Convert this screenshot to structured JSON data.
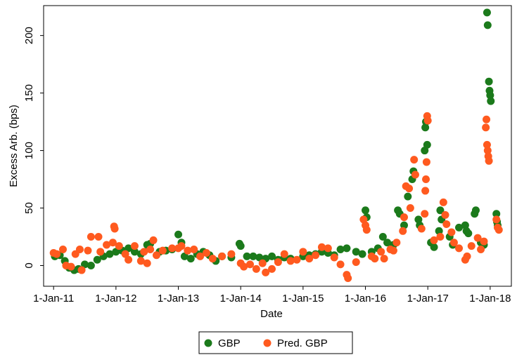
{
  "chart_data": {
    "type": "scatter",
    "x_label": "Date",
    "y_label": "Excess Arb. (bps)",
    "xlim": [
      2010.84,
      2018.34
    ],
    "xticks": [
      {
        "value": 2011,
        "label": "1-Jan-11"
      },
      {
        "value": 2012,
        "label": "1-Jan-12"
      },
      {
        "value": 2013,
        "label": "1-Jan-13"
      },
      {
        "value": 2014,
        "label": "1-Jan-14"
      },
      {
        "value": 2015,
        "label": "1-Jan-15"
      },
      {
        "value": 2016,
        "label": "1-Jan-16"
      },
      {
        "value": 2017,
        "label": "1-Jan-17"
      },
      {
        "value": 2018,
        "label": "1-Jan-18"
      }
    ],
    "ylim": [
      -18,
      226
    ],
    "yticks": [
      0,
      50,
      100,
      150,
      200
    ],
    "legend": "bottom",
    "series": [
      {
        "name": "GBP",
        "color": "#1b7a1b",
        "x": [
          2011.02,
          2011.1,
          2011.18,
          2011.25,
          2011.33,
          2011.4,
          2011.5,
          2011.6,
          2011.7,
          2011.8,
          2011.9,
          2012.0,
          2012.1,
          2012.2,
          2012.3,
          2012.4,
          2012.5,
          2012.55,
          2012.7,
          2012.8,
          2012.9,
          2013.0,
          2013.05,
          2013.1,
          2013.2,
          2013.3,
          2013.4,
          2013.5,
          2013.6,
          2013.7,
          2013.85,
          2013.98,
          2014.0,
          2014.1,
          2014.2,
          2014.3,
          2014.4,
          2014.5,
          2014.6,
          2014.7,
          2014.8,
          2015.0,
          2015.1,
          2015.2,
          2015.3,
          2015.4,
          2015.5,
          2015.6,
          2015.7,
          2015.85,
          2015.95,
          2016.0,
          2016.02,
          2016.1,
          2016.2,
          2016.28,
          2016.35,
          2016.45,
          2016.52,
          2016.55,
          2016.62,
          2016.68,
          2016.75,
          2016.77,
          2016.85,
          2016.87,
          2016.95,
          2016.96,
          2016.97,
          2016.99,
          2017.05,
          2017.1,
          2017.18,
          2017.2,
          2017.22,
          2017.35,
          2017.4,
          2017.5,
          2017.6,
          2017.62,
          2017.65,
          2017.75,
          2017.77,
          2017.85,
          2017.9,
          2017.95,
          2017.96,
          2017.98,
          2017.99,
          2018.0,
          2018.01,
          2018.1,
          2018.11,
          2018.12
        ],
        "values": [
          8,
          9,
          4,
          -2,
          -4,
          -3,
          1,
          0,
          5,
          8,
          10,
          12,
          13,
          15,
          12,
          10,
          18,
          19,
          12,
          13,
          14,
          27,
          20,
          8,
          6,
          10,
          12,
          9,
          4,
          8,
          7,
          19,
          17,
          8,
          8,
          7,
          6,
          8,
          5,
          7,
          6,
          8,
          9,
          10,
          12,
          11,
          9,
          14,
          15,
          12,
          10,
          48,
          42,
          12,
          15,
          25,
          20,
          18,
          48,
          45,
          35,
          60,
          75,
          82,
          40,
          35,
          100,
          120,
          125,
          105,
          20,
          16,
          30,
          48,
          40,
          25,
          18,
          33,
          35,
          30,
          28,
          45,
          48,
          20,
          18,
          220,
          209,
          160,
          152,
          148,
          143,
          45,
          38,
          35
        ]
      },
      {
        "name": "Pred. GBP",
        "color": "#ff5a1f",
        "x": [
          2011.0,
          2011.05,
          2011.15,
          2011.2,
          2011.28,
          2011.35,
          2011.42,
          2011.45,
          2011.55,
          2011.6,
          2011.72,
          2011.75,
          2011.85,
          2011.95,
          2011.97,
          2011.98,
          2012.05,
          2012.15,
          2012.2,
          2012.3,
          2012.4,
          2012.45,
          2012.5,
          2012.55,
          2012.6,
          2012.65,
          2012.75,
          2012.9,
          2013.0,
          2013.05,
          2013.15,
          2013.25,
          2013.35,
          2013.45,
          2013.55,
          2013.7,
          2013.85,
          2014.0,
          2014.05,
          2014.15,
          2014.25,
          2014.35,
          2014.4,
          2014.5,
          2014.6,
          2014.7,
          2014.8,
          2014.9,
          2015.0,
          2015.1,
          2015.2,
          2015.3,
          2015.4,
          2015.5,
          2015.6,
          2015.7,
          2015.72,
          2015.85,
          2015.97,
          2016.0,
          2016.02,
          2016.1,
          2016.15,
          2016.25,
          2016.3,
          2016.4,
          2016.45,
          2016.5,
          2016.6,
          2016.62,
          2016.65,
          2016.7,
          2016.72,
          2016.78,
          2016.8,
          2016.9,
          2016.95,
          2016.96,
          2016.97,
          2016.98,
          2016.99,
          2017.0,
          2017.1,
          2017.2,
          2017.25,
          2017.28,
          2017.3,
          2017.38,
          2017.42,
          2017.5,
          2017.6,
          2017.63,
          2017.7,
          2017.8,
          2017.85,
          2017.9,
          2017.93,
          2017.94,
          2017.95,
          2017.96,
          2017.97,
          2017.98,
          2018.1,
          2018.12,
          2018.14
        ],
        "values": [
          11,
          10,
          14,
          0,
          -1,
          10,
          14,
          -4,
          13,
          25,
          25,
          12,
          18,
          20,
          34,
          32,
          17,
          10,
          5,
          17,
          4,
          12,
          2,
          14,
          22,
          9,
          13,
          15,
          15,
          17,
          13,
          14,
          8,
          11,
          6,
          8,
          10,
          2,
          -1,
          1,
          -3,
          2,
          -6,
          -3,
          3,
          10,
          4,
          5,
          12,
          6,
          9,
          16,
          15,
          7,
          1,
          -8,
          -11,
          3,
          40,
          35,
          31,
          8,
          6,
          12,
          6,
          14,
          13,
          20,
          30,
          42,
          69,
          67,
          50,
          92,
          79,
          32,
          45,
          65,
          75,
          90,
          130,
          126,
          22,
          25,
          55,
          44,
          36,
          29,
          20,
          15,
          5,
          8,
          17,
          24,
          14,
          21,
          120,
          127,
          105,
          100,
          95,
          91,
          40,
          33,
          31
        ]
      }
    ]
  }
}
